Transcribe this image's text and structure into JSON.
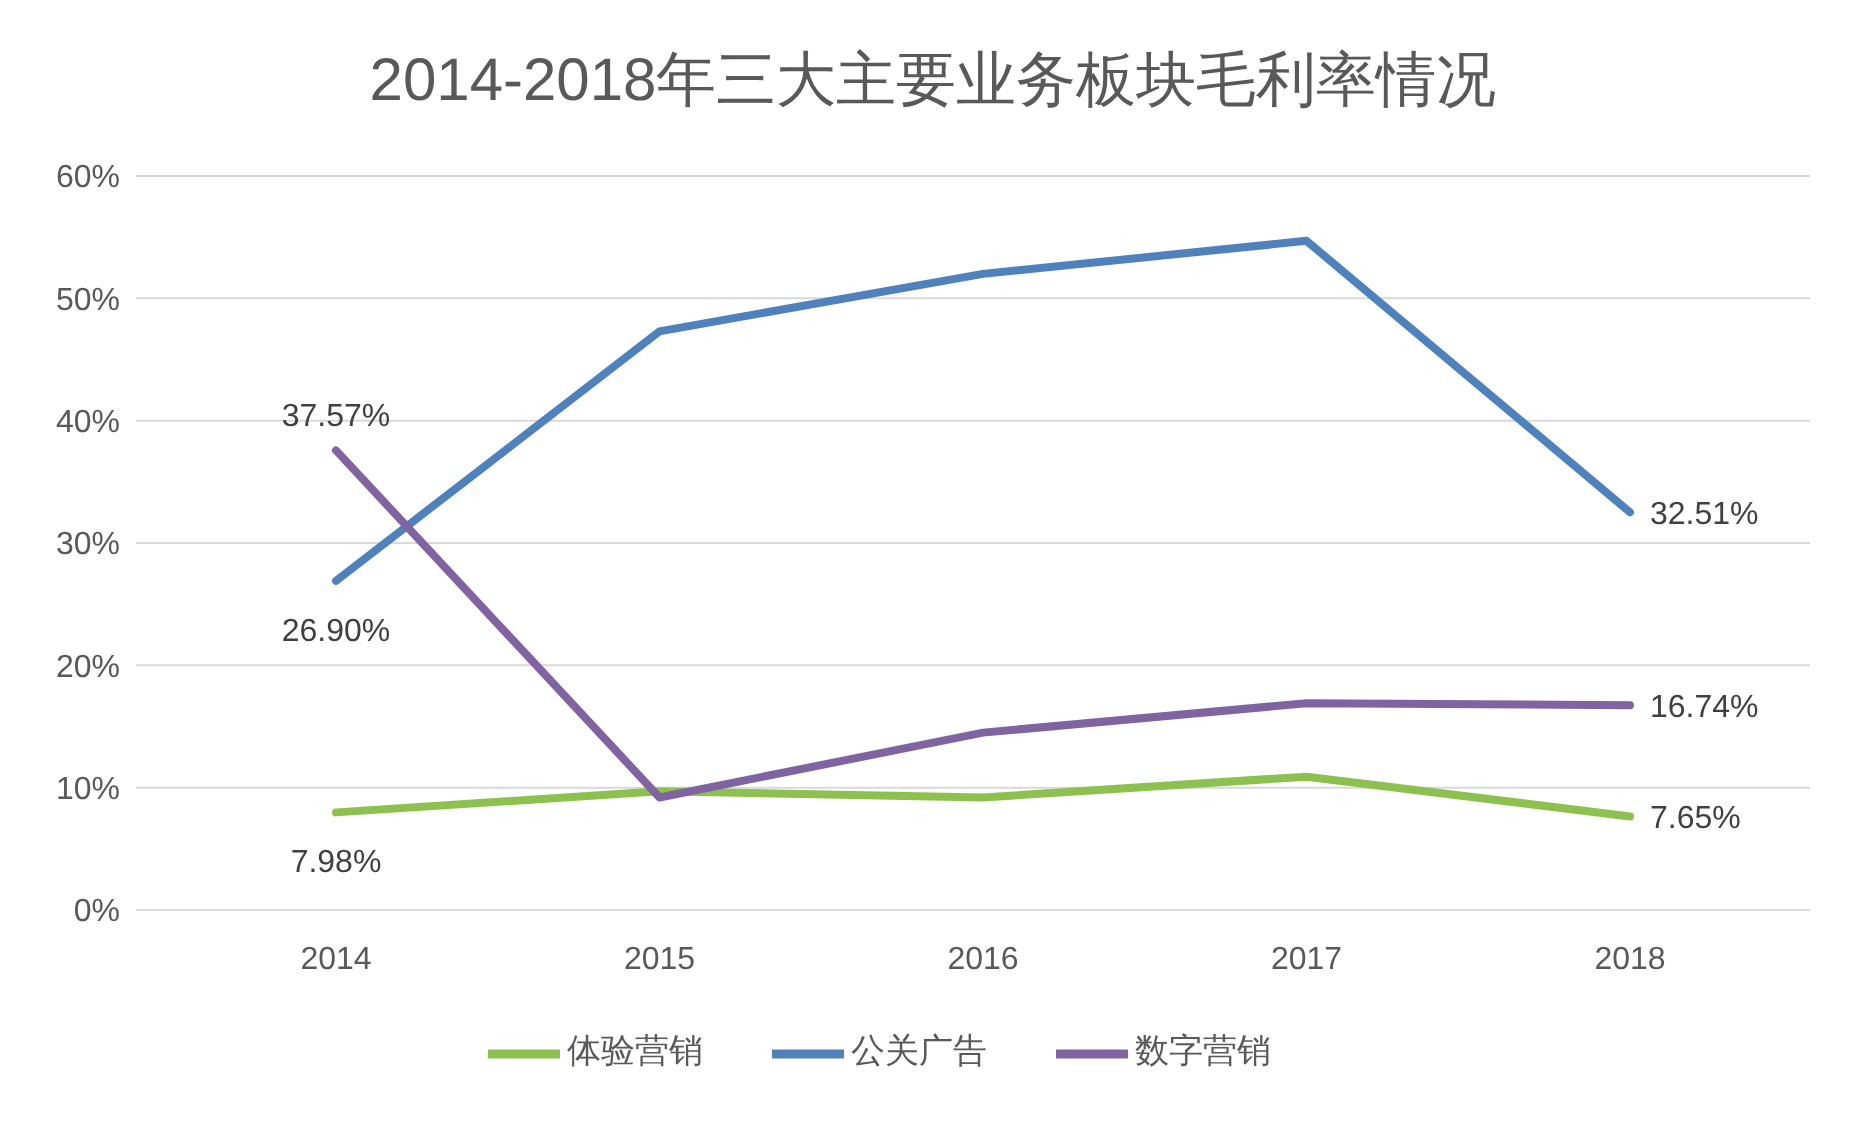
{
  "chart_data": {
    "type": "line",
    "title": "2014-2018年三大主要业务板块毛利率情况",
    "categories": [
      "2014",
      "2015",
      "2016",
      "2017",
      "2018"
    ],
    "series": [
      {
        "name": "体验营销",
        "color": "#8cc04f",
        "values": [
          7.98,
          9.7,
          9.2,
          10.9,
          7.65
        ],
        "value_labels": [
          "7.98%",
          null,
          null,
          null,
          "7.65%"
        ]
      },
      {
        "name": "公关广告",
        "color": "#4f81bd",
        "values": [
          26.9,
          47.3,
          52,
          54.7,
          32.51
        ],
        "value_labels": [
          "26.90%",
          null,
          null,
          null,
          "32.51%"
        ]
      },
      {
        "name": "数字营销",
        "color": "#8064a2",
        "values": [
          37.57,
          9.2,
          14.5,
          16.9,
          16.74
        ],
        "value_labels": [
          "37.57%",
          null,
          null,
          null,
          "16.74%"
        ]
      }
    ],
    "ylim": [
      0,
      60
    ],
    "yticks": [
      {
        "value": 0,
        "label": "0%"
      },
      {
        "value": 10,
        "label": "10%"
      },
      {
        "value": 20,
        "label": "20%"
      },
      {
        "value": 30,
        "label": "30%"
      },
      {
        "value": 40,
        "label": "40%"
      },
      {
        "value": 50,
        "label": "50%"
      },
      {
        "value": 60,
        "label": "60%"
      }
    ],
    "grid": "y",
    "legend": "bottom",
    "marker": "none",
    "line_style": "solid"
  }
}
